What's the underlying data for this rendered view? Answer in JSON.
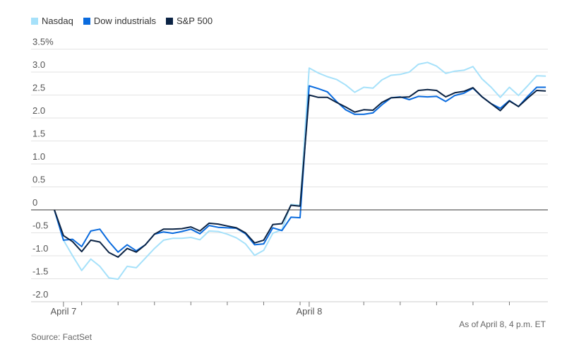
{
  "chart_data": {
    "type": "line",
    "title": "",
    "xlabel": "",
    "ylabel": "",
    "x_tick_labels": [
      "April 7",
      "April 8"
    ],
    "y_ticks": [
      -2.0,
      -1.5,
      -1.0,
      -0.5,
      0,
      0.5,
      1.0,
      1.5,
      2.0,
      2.5,
      3.0,
      3.5
    ],
    "y_tick_labels": [
      "-2.0",
      "-1.5",
      "-1.0",
      "-0.5",
      "0",
      "0.5",
      "1.0",
      "1.5",
      "2.0",
      "2.5",
      "3.0",
      "3.5%"
    ],
    "ylim": [
      -2.0,
      3.5
    ],
    "grid": true,
    "legend_position": "top-left",
    "series": [
      {
        "name": "Nasdaq",
        "color": "#a6e1fa",
        "values": [
          0,
          -0.66,
          -1.0,
          -1.32,
          -1.07,
          -1.23,
          -1.48,
          -1.51,
          -1.23,
          -1.26,
          -1.05,
          -0.84,
          -0.66,
          -0.62,
          -0.62,
          -0.6,
          -0.65,
          -0.46,
          -0.47,
          -0.53,
          -0.61,
          -0.74,
          -0.99,
          -0.88,
          -0.51,
          -0.43,
          0.12,
          0.1,
          3.09,
          2.98,
          2.9,
          2.84,
          2.72,
          2.56,
          2.67,
          2.65,
          2.83,
          2.93,
          2.95,
          3.0,
          3.17,
          3.21,
          3.13,
          2.97,
          3.02,
          3.04,
          3.12,
          2.85,
          2.67,
          2.45,
          2.67,
          2.49,
          2.7,
          2.92,
          2.91
        ]
      },
      {
        "name": "Dow industrials",
        "color": "#0a6bde",
        "values": [
          0,
          -0.66,
          -0.64,
          -0.8,
          -0.46,
          -0.42,
          -0.69,
          -0.92,
          -0.76,
          -0.89,
          -0.76,
          -0.53,
          -0.48,
          -0.51,
          -0.47,
          -0.42,
          -0.52,
          -0.34,
          -0.38,
          -0.39,
          -0.4,
          -0.52,
          -0.76,
          -0.74,
          -0.39,
          -0.45,
          -0.16,
          -0.17,
          2.7,
          2.64,
          2.57,
          2.36,
          2.18,
          2.08,
          2.08,
          2.11,
          2.29,
          2.44,
          2.46,
          2.4,
          2.47,
          2.46,
          2.47,
          2.36,
          2.49,
          2.54,
          2.65,
          2.46,
          2.31,
          2.21,
          2.38,
          2.25,
          2.47,
          2.67,
          2.67
        ]
      },
      {
        "name": "S&P 500",
        "color": "#0b2344",
        "values": [
          0,
          -0.56,
          -0.69,
          -0.91,
          -0.66,
          -0.7,
          -0.93,
          -1.03,
          -0.84,
          -0.92,
          -0.76,
          -0.53,
          -0.42,
          -0.42,
          -0.41,
          -0.37,
          -0.46,
          -0.29,
          -0.31,
          -0.35,
          -0.39,
          -0.5,
          -0.72,
          -0.66,
          -0.32,
          -0.3,
          0.1,
          0.08,
          2.5,
          2.45,
          2.45,
          2.34,
          2.24,
          2.13,
          2.18,
          2.17,
          2.34,
          2.44,
          2.45,
          2.46,
          2.6,
          2.62,
          2.6,
          2.46,
          2.55,
          2.58,
          2.66,
          2.46,
          2.31,
          2.16,
          2.37,
          2.25,
          2.43,
          2.6,
          2.59
        ]
      }
    ]
  },
  "footer": {
    "source": "Source: FactSet",
    "as_of": "As of April 8, 4 p.m. ET"
  }
}
